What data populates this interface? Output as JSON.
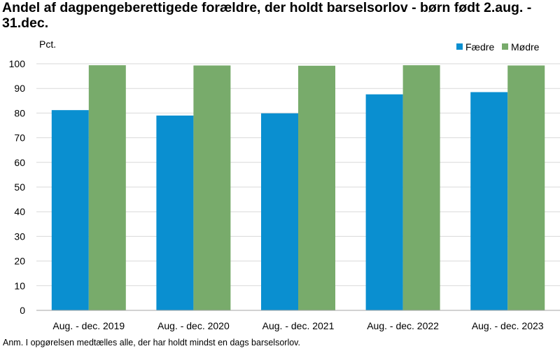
{
  "title": "Andel af dagpengeberettigede forældre, der holdt barselsorlov - børn født 2.aug. - 31.dec.",
  "note": "Anm. I opgørelsen medtælles alle, der har holdt mindst en dags barselsorlov.",
  "chart_data": {
    "type": "bar",
    "title": "Andel af dagpengeberettigede forældre, der holdt barselsorlov - børn født 2.aug. - 31.dec.",
    "ylabel": "Pct.",
    "xlabel": "",
    "ylim": [
      0,
      100
    ],
    "yticks": [
      0,
      10,
      20,
      30,
      40,
      50,
      60,
      70,
      80,
      90,
      100
    ],
    "grid": true,
    "legend_position": "top-right",
    "categories": [
      "Aug. - dec. 2019",
      "Aug. - dec. 2020",
      "Aug. - dec. 2021",
      "Aug. - dec. 2022",
      "Aug. - dec. 2023"
    ],
    "series": [
      {
        "name": "Fædre",
        "color": "#0a8fd0",
        "values": [
          81.2,
          79.0,
          79.9,
          87.6,
          88.5
        ]
      },
      {
        "name": "Mødre",
        "color": "#78ab6b",
        "values": [
          99.4,
          99.3,
          99.2,
          99.4,
          99.3
        ]
      }
    ]
  }
}
